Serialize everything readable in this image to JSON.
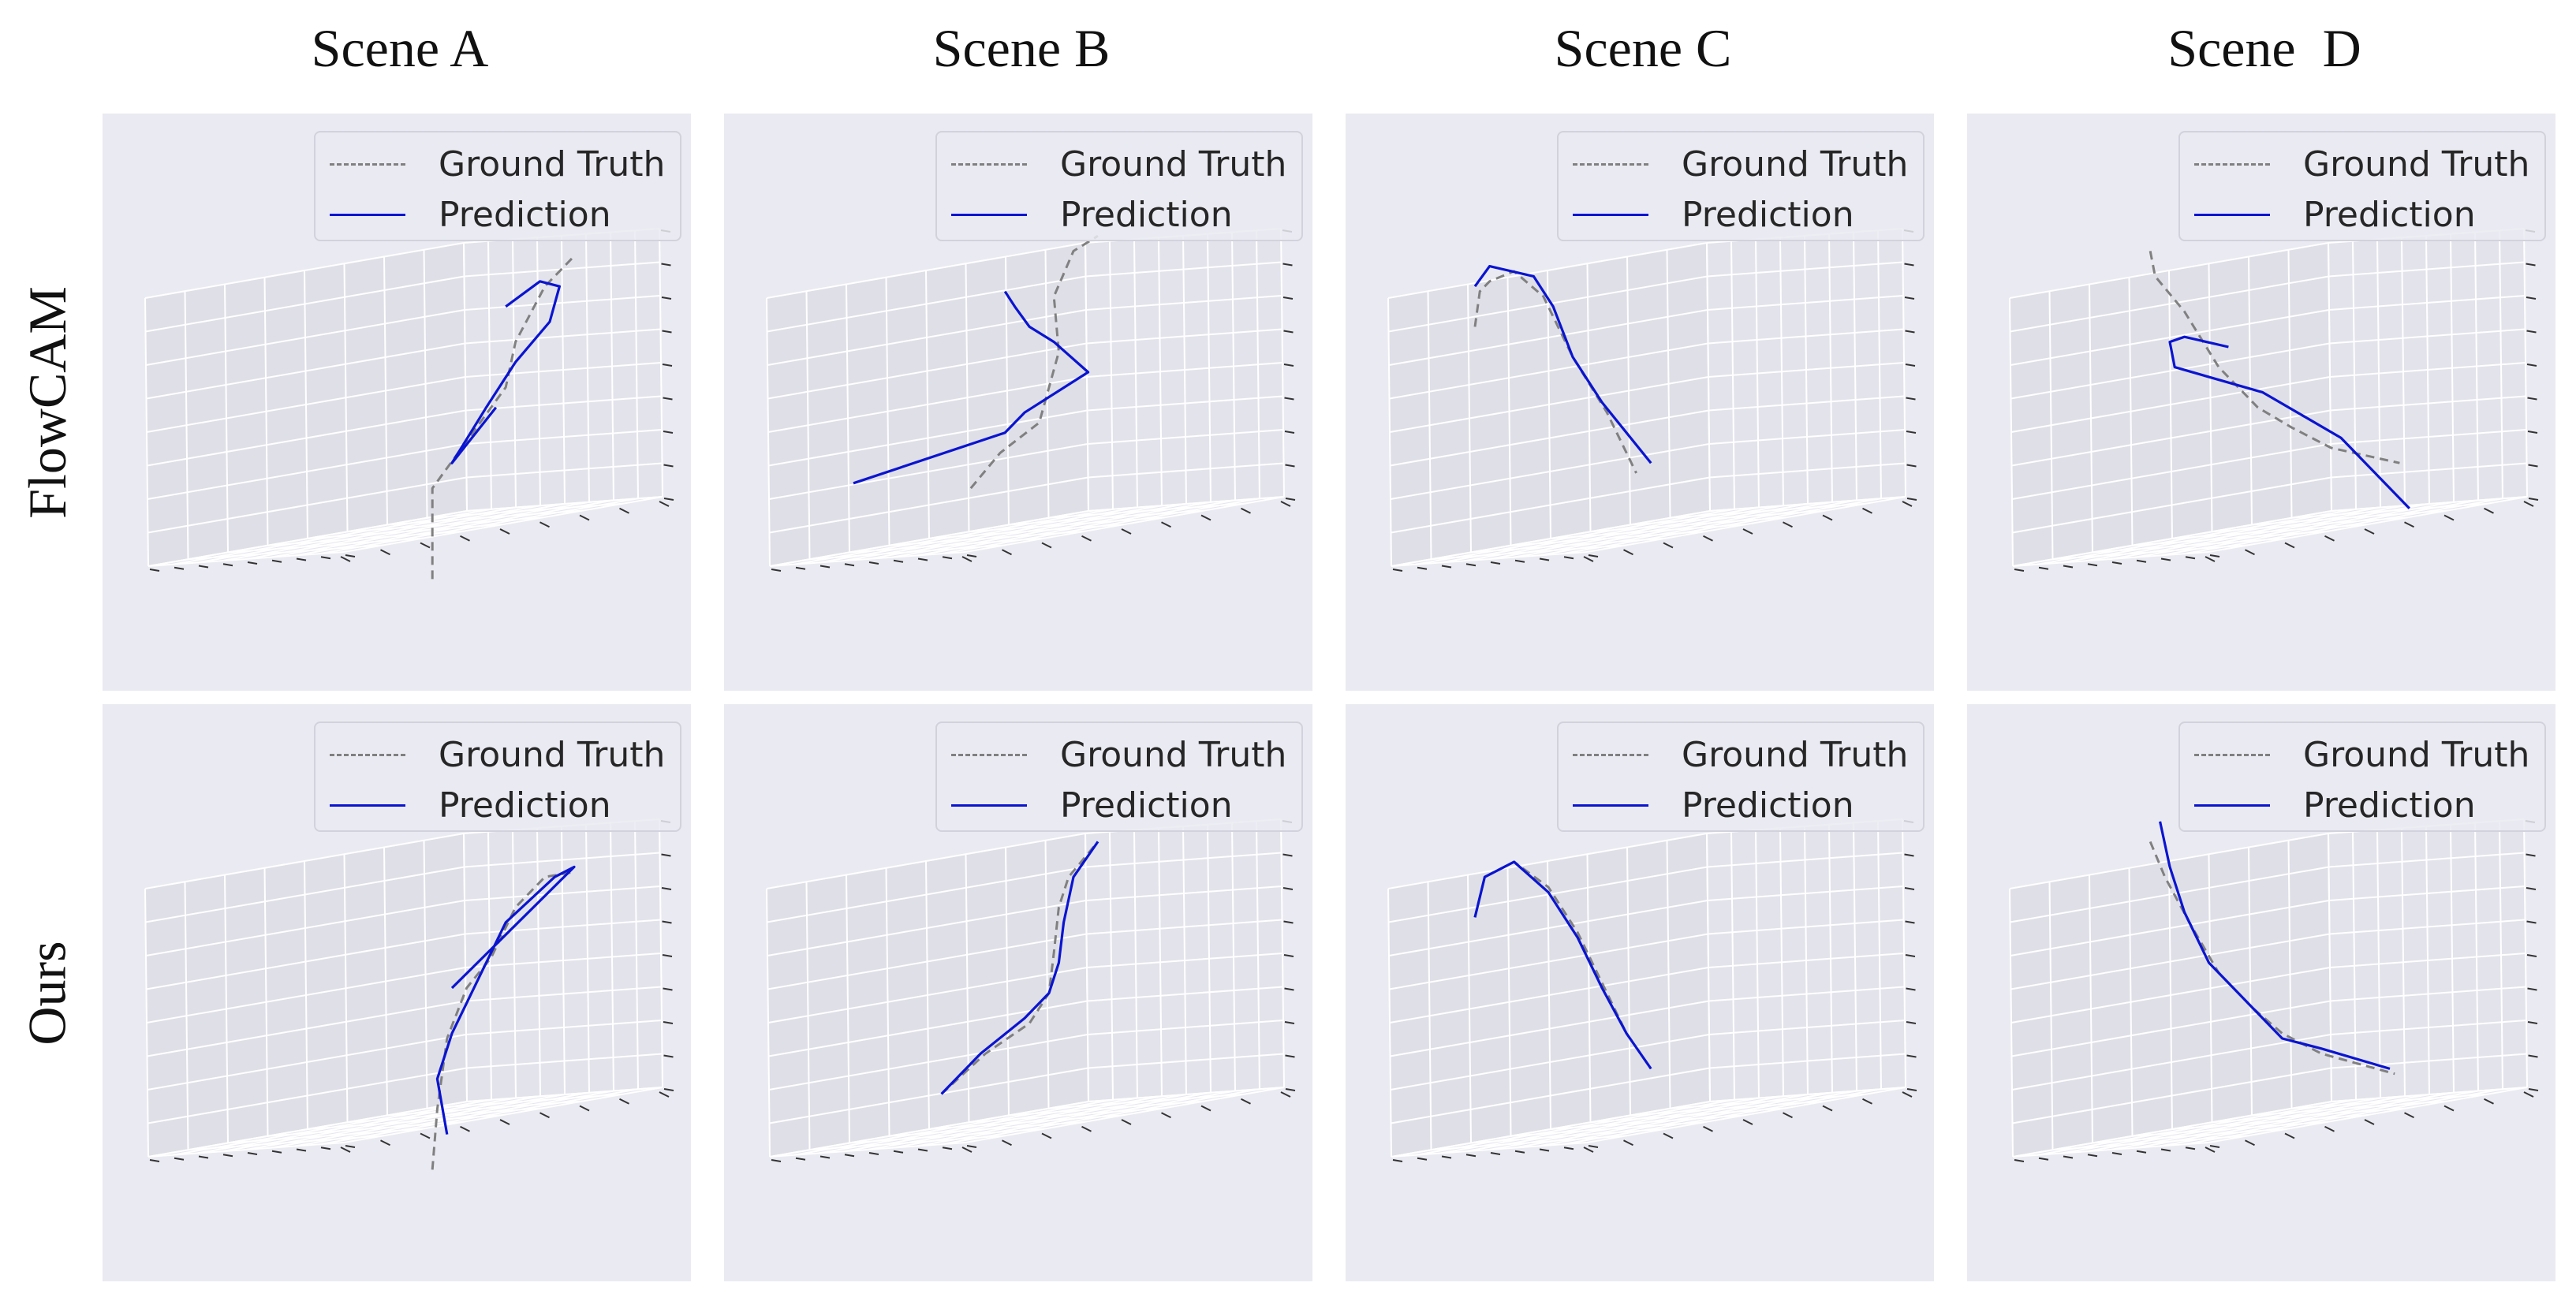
{
  "figure": {
    "column_titles": [
      "Scene A",
      "Scene B",
      "Scene C",
      "Scene  D"
    ],
    "row_titles": [
      "FlowCAM",
      "Ours"
    ]
  },
  "legend": {
    "ground_truth": "Ground Truth",
    "prediction": "Prediction"
  },
  "colors": {
    "ground_truth": "#808080",
    "prediction": "#0a14d0",
    "pane": "#eaeaf2",
    "grid": "#ffffff"
  },
  "chart_data": [
    {
      "type": "line",
      "projection": "3d",
      "row": "FlowCAM",
      "scene": "Scene A",
      "grid": true,
      "legend_position": "top-right",
      "series": [
        {
          "name": "Ground Truth",
          "style": "dashed",
          "points": [
            [
              0.61,
              0.14
            ],
            [
              0.61,
              0.32
            ],
            [
              0.64,
              0.36
            ],
            [
              0.7,
              0.44
            ],
            [
              0.76,
              0.52
            ],
            [
              0.78,
              0.61
            ],
            [
              0.84,
              0.72
            ],
            [
              0.9,
              0.78
            ]
          ]
        },
        {
          "name": "Prediction",
          "style": "solid",
          "points": [
            [
              0.74,
              0.48
            ],
            [
              0.65,
              0.37
            ],
            [
              0.72,
              0.48
            ],
            [
              0.78,
              0.57
            ],
            [
              0.85,
              0.65
            ],
            [
              0.87,
              0.72
            ],
            [
              0.83,
              0.73
            ],
            [
              0.76,
              0.68
            ]
          ]
        }
      ]
    },
    {
      "type": "line",
      "projection": "3d",
      "row": "FlowCAM",
      "scene": "Scene B",
      "grid": true,
      "legend_position": "top-right",
      "series": [
        {
          "name": "Ground Truth",
          "style": "dashed",
          "points": [
            [
              0.44,
              0.32
            ],
            [
              0.5,
              0.39
            ],
            [
              0.58,
              0.45
            ],
            [
              0.6,
              0.52
            ],
            [
              0.62,
              0.59
            ],
            [
              0.61,
              0.7
            ],
            [
              0.65,
              0.79
            ],
            [
              0.7,
              0.82
            ]
          ]
        },
        {
          "name": "Prediction",
          "style": "solid",
          "points": [
            [
              0.2,
              0.33
            ],
            [
              0.51,
              0.43
            ],
            [
              0.55,
              0.47
            ],
            [
              0.68,
              0.55
            ],
            [
              0.61,
              0.61
            ],
            [
              0.56,
              0.64
            ],
            [
              0.53,
              0.68
            ],
            [
              0.51,
              0.71
            ]
          ]
        }
      ]
    },
    {
      "type": "line",
      "projection": "3d",
      "row": "FlowCAM",
      "scene": "Scene C",
      "grid": true,
      "legend_position": "top-right",
      "series": [
        {
          "name": "Ground Truth",
          "style": "dashed",
          "points": [
            [
              0.2,
              0.64
            ],
            [
              0.21,
              0.71
            ],
            [
              0.23,
              0.73
            ],
            [
              0.28,
              0.75
            ],
            [
              0.34,
              0.7
            ],
            [
              0.4,
              0.58
            ],
            [
              0.47,
              0.47
            ],
            [
              0.53,
              0.35
            ]
          ]
        },
        {
          "name": "Prediction",
          "style": "solid",
          "points": [
            [
              0.2,
              0.72
            ],
            [
              0.23,
              0.76
            ],
            [
              0.32,
              0.74
            ],
            [
              0.36,
              0.68
            ],
            [
              0.4,
              0.58
            ],
            [
              0.46,
              0.49
            ],
            [
              0.56,
              0.37
            ]
          ]
        }
      ]
    },
    {
      "type": "line",
      "projection": "3d",
      "row": "FlowCAM",
      "scene": "Scene D",
      "grid": true,
      "legend_position": "top-right",
      "series": [
        {
          "name": "Ground Truth",
          "style": "dashed",
          "points": [
            [
              0.31,
              0.79
            ],
            [
              0.32,
              0.74
            ],
            [
              0.38,
              0.67
            ],
            [
              0.45,
              0.56
            ],
            [
              0.53,
              0.48
            ],
            [
              0.6,
              0.44
            ],
            [
              0.68,
              0.4
            ],
            [
              0.82,
              0.37
            ]
          ]
        },
        {
          "name": "Prediction",
          "style": "solid",
          "points": [
            [
              0.47,
              0.6
            ],
            [
              0.38,
              0.62
            ],
            [
              0.35,
              0.61
            ],
            [
              0.36,
              0.56
            ],
            [
              0.54,
              0.51
            ],
            [
              0.7,
              0.42
            ],
            [
              0.84,
              0.28
            ]
          ]
        }
      ]
    },
    {
      "type": "line",
      "projection": "3d",
      "row": "Ours",
      "scene": "Scene A",
      "grid": true,
      "legend_position": "top-right",
      "series": [
        {
          "name": "Ground Truth",
          "style": "dashed",
          "points": [
            [
              0.61,
              0.14
            ],
            [
              0.62,
              0.26
            ],
            [
              0.64,
              0.4
            ],
            [
              0.68,
              0.5
            ],
            [
              0.73,
              0.56
            ],
            [
              0.78,
              0.66
            ],
            [
              0.84,
              0.72
            ],
            [
              0.9,
              0.73
            ]
          ]
        },
        {
          "name": "Prediction",
          "style": "solid",
          "points": [
            [
              0.64,
              0.21
            ],
            [
              0.62,
              0.32
            ],
            [
              0.65,
              0.41
            ],
            [
              0.7,
              0.51
            ],
            [
              0.76,
              0.63
            ],
            [
              0.86,
              0.72
            ],
            [
              0.9,
              0.74
            ],
            [
              0.65,
              0.5
            ]
          ]
        }
      ]
    },
    {
      "type": "line",
      "projection": "3d",
      "row": "Ours",
      "scene": "Scene B",
      "grid": true,
      "legend_position": "top-right",
      "series": [
        {
          "name": "Ground Truth",
          "style": "dashed",
          "points": [
            [
              0.38,
              0.29
            ],
            [
              0.47,
              0.37
            ],
            [
              0.56,
              0.43
            ],
            [
              0.6,
              0.49
            ],
            [
              0.61,
              0.57
            ],
            [
              0.62,
              0.66
            ],
            [
              0.64,
              0.72
            ],
            [
              0.7,
              0.79
            ]
          ]
        },
        {
          "name": "Prediction",
          "style": "solid",
          "points": [
            [
              0.38,
              0.29
            ],
            [
              0.46,
              0.37
            ],
            [
              0.55,
              0.44
            ],
            [
              0.6,
              0.49
            ],
            [
              0.62,
              0.55
            ],
            [
              0.63,
              0.63
            ],
            [
              0.65,
              0.72
            ],
            [
              0.7,
              0.79
            ]
          ]
        }
      ]
    },
    {
      "type": "line",
      "projection": "3d",
      "row": "Ours",
      "scene": "Scene C",
      "grid": true,
      "legend_position": "top-right",
      "series": [
        {
          "name": "Ground Truth",
          "style": "dashed",
          "points": [
            [
              0.2,
              0.64
            ],
            [
              0.22,
              0.72
            ],
            [
              0.28,
              0.75
            ],
            [
              0.35,
              0.7
            ],
            [
              0.41,
              0.61
            ],
            [
              0.46,
              0.51
            ],
            [
              0.51,
              0.41
            ],
            [
              0.56,
              0.34
            ]
          ]
        },
        {
          "name": "Prediction",
          "style": "solid",
          "points": [
            [
              0.2,
              0.64
            ],
            [
              0.22,
              0.72
            ],
            [
              0.28,
              0.75
            ],
            [
              0.35,
              0.69
            ],
            [
              0.41,
              0.6
            ],
            [
              0.46,
              0.5
            ],
            [
              0.51,
              0.41
            ],
            [
              0.56,
              0.34
            ]
          ]
        }
      ]
    },
    {
      "type": "line",
      "projection": "3d",
      "row": "Ours",
      "scene": "Scene D",
      "grid": true,
      "legend_position": "top-right",
      "series": [
        {
          "name": "Ground Truth",
          "style": "dashed",
          "points": [
            [
              0.31,
              0.79
            ],
            [
              0.34,
              0.72
            ],
            [
              0.39,
              0.63
            ],
            [
              0.45,
              0.53
            ],
            [
              0.52,
              0.46
            ],
            [
              0.58,
              0.41
            ],
            [
              0.66,
              0.37
            ],
            [
              0.81,
              0.33
            ]
          ]
        },
        {
          "name": "Prediction",
          "style": "solid",
          "points": [
            [
              0.33,
              0.83
            ],
            [
              0.35,
              0.74
            ],
            [
              0.38,
              0.65
            ],
            [
              0.43,
              0.55
            ],
            [
              0.51,
              0.47
            ],
            [
              0.58,
              0.4
            ],
            [
              0.66,
              0.38
            ],
            [
              0.8,
              0.34
            ]
          ]
        }
      ]
    }
  ]
}
